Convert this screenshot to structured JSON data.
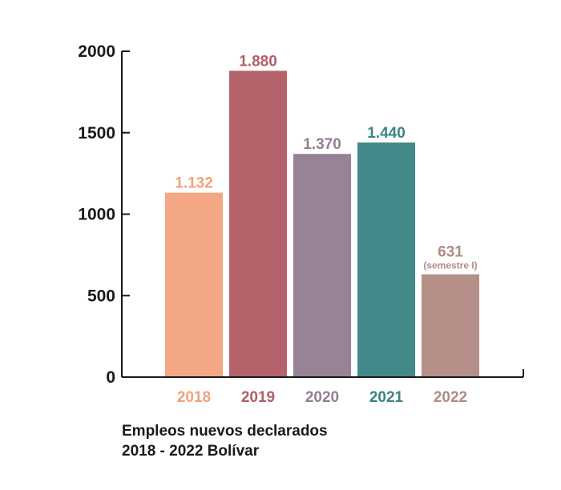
{
  "chart_data": {
    "type": "bar",
    "categories": [
      "2018",
      "2019",
      "2020",
      "2021",
      "2022"
    ],
    "values": [
      1132,
      1880,
      1370,
      1440,
      631
    ],
    "data_labels": [
      "1.132",
      "1.880",
      "1.370",
      "1.440",
      "631"
    ],
    "notes": [
      "",
      "",
      "",
      "",
      "(semestre I)"
    ],
    "colors": [
      "#f4a784",
      "#b5636b",
      "#968396",
      "#428a8a",
      "#b59089"
    ],
    "label_colors": [
      "#f2a27c",
      "#b35e67",
      "#927f93",
      "#3a8585",
      "#b08b84"
    ],
    "yticks": [
      0,
      500,
      1000,
      1500,
      2000
    ],
    "ylim": [
      0,
      2000
    ],
    "xlabel": "",
    "ylabel": "",
    "grid": false
  },
  "caption": {
    "line1": "Empleos nuevos declarados",
    "line2": "2018 - 2022 Bolívar"
  }
}
